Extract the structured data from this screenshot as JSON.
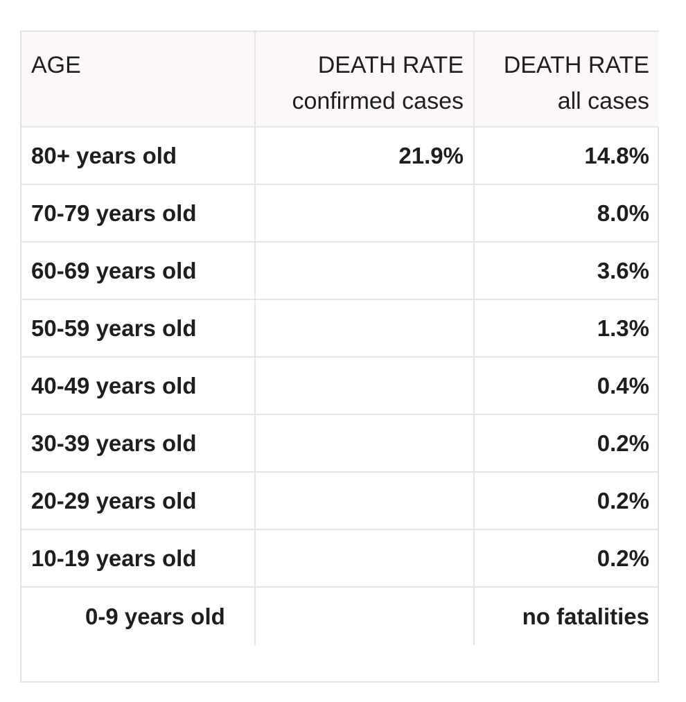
{
  "table": {
    "headers": {
      "age": "AGE",
      "confirmed_title": "DEATH RATE",
      "confirmed_sub": "confirmed cases",
      "all_title": "DEATH RATE",
      "all_sub": "all cases"
    },
    "rows": [
      {
        "age": "80+ years old",
        "confirmed": "21.9%",
        "all": "14.8%"
      },
      {
        "age": "70-79 years old",
        "confirmed": "",
        "all": "8.0%"
      },
      {
        "age": "60-69 years old",
        "confirmed": "",
        "all": "3.6%"
      },
      {
        "age": "50-59 years old",
        "confirmed": "",
        "all": "1.3%"
      },
      {
        "age": "40-49 years old",
        "confirmed": "",
        "all": "0.4%"
      },
      {
        "age": "30-39 years old",
        "confirmed": "",
        "all": "0.2%"
      },
      {
        "age": "20-29 years old",
        "confirmed": "",
        "all": "0.2%"
      },
      {
        "age": "10-19 years old",
        "confirmed": "",
        "all": "0.2%"
      },
      {
        "age": "0-9 years old",
        "confirmed": "",
        "all": "no fatalities"
      }
    ]
  },
  "colors": {
    "header_bg": "#fcf8f7",
    "border": "#e7e4e4",
    "text": "#1e1e1e"
  }
}
